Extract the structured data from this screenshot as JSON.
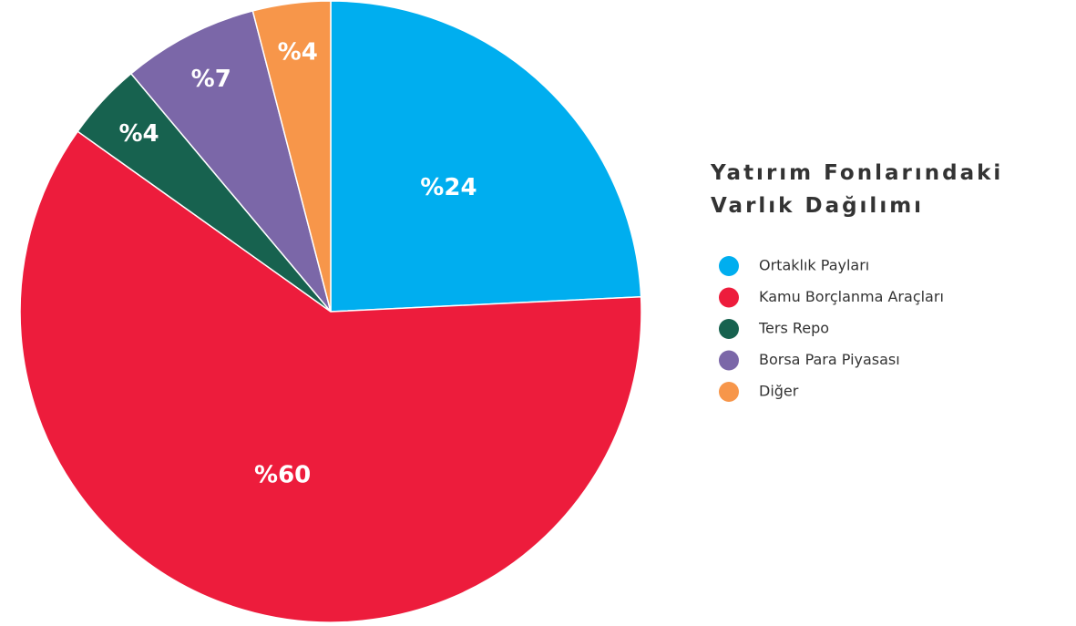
{
  "chart_data": {
    "type": "pie",
    "title": "Yatırım Fonlarındaki Varlık Dağılımı",
    "categories": [
      "Ortaklık Payları",
      "Kamu Borçlanma Araçları",
      "Ters Repo",
      "Borsa Para Piyasası",
      "Diğer"
    ],
    "values": [
      24,
      60,
      4,
      7,
      4
    ],
    "value_labels": [
      "%24",
      "%60",
      "%4",
      "%7",
      "%4"
    ],
    "colors": [
      "#00aeef",
      "#ed1c3c",
      "#17624f",
      "#7b67a8",
      "#f7964a"
    ]
  }
}
